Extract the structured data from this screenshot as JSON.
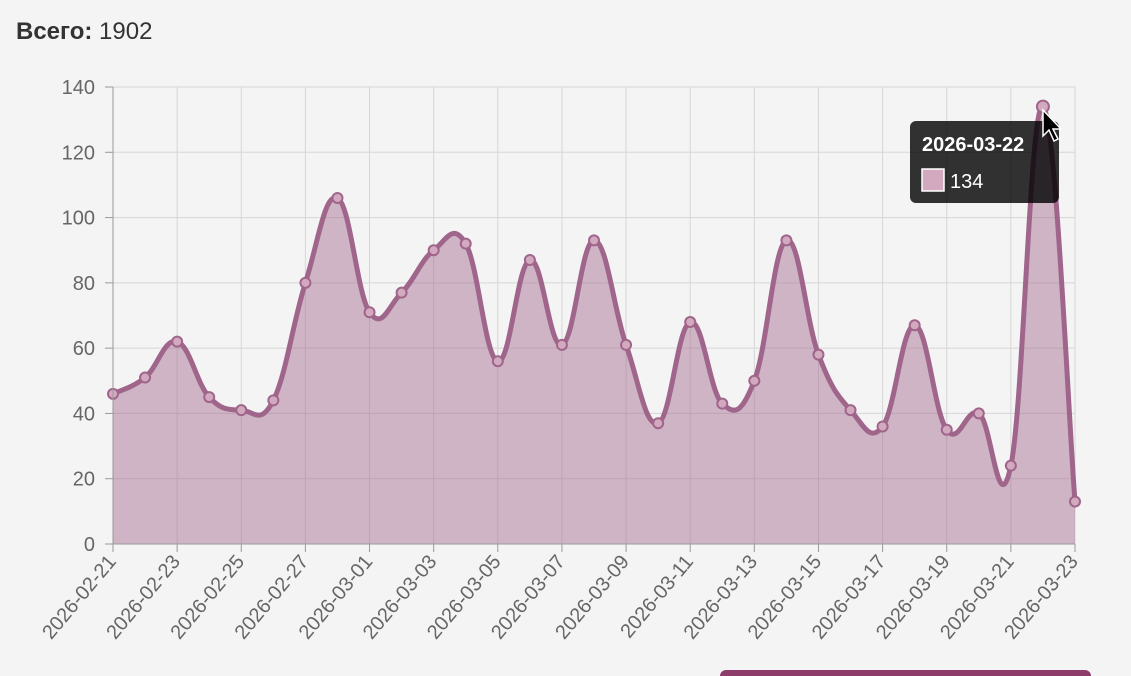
{
  "summary": {
    "label": "Всего:",
    "value": 1902
  },
  "chart_data": {
    "type": "line",
    "categories": [
      "2026-02-21",
      null,
      "2026-02-23",
      null,
      "2026-02-25",
      null,
      "2026-02-27",
      null,
      "2026-03-01",
      null,
      "2026-03-03",
      null,
      "2026-03-05",
      null,
      "2026-03-07",
      null,
      "2026-03-09",
      null,
      "2026-03-11",
      null,
      "2026-03-13",
      null,
      "2026-03-15",
      null,
      "2026-03-17",
      null,
      "2026-03-19",
      null,
      "2026-03-21",
      null,
      "2026-03-23"
    ],
    "series": [
      {
        "color": "#a0658a",
        "values": [
          46,
          51,
          62,
          45,
          41,
          44,
          80,
          106,
          71,
          77,
          90,
          92,
          56,
          87,
          61,
          93,
          61,
          37,
          68,
          43,
          50,
          93,
          58,
          41,
          36,
          67,
          35,
          40,
          24,
          134,
          13
        ]
      }
    ],
    "ylim": [
      0,
      140
    ],
    "yticks": [
      0,
      20,
      40,
      60,
      80,
      100,
      120,
      140
    ],
    "grid": true,
    "fill": true,
    "tooltip": {
      "title": "2026-03-22",
      "index": 29
    }
  }
}
